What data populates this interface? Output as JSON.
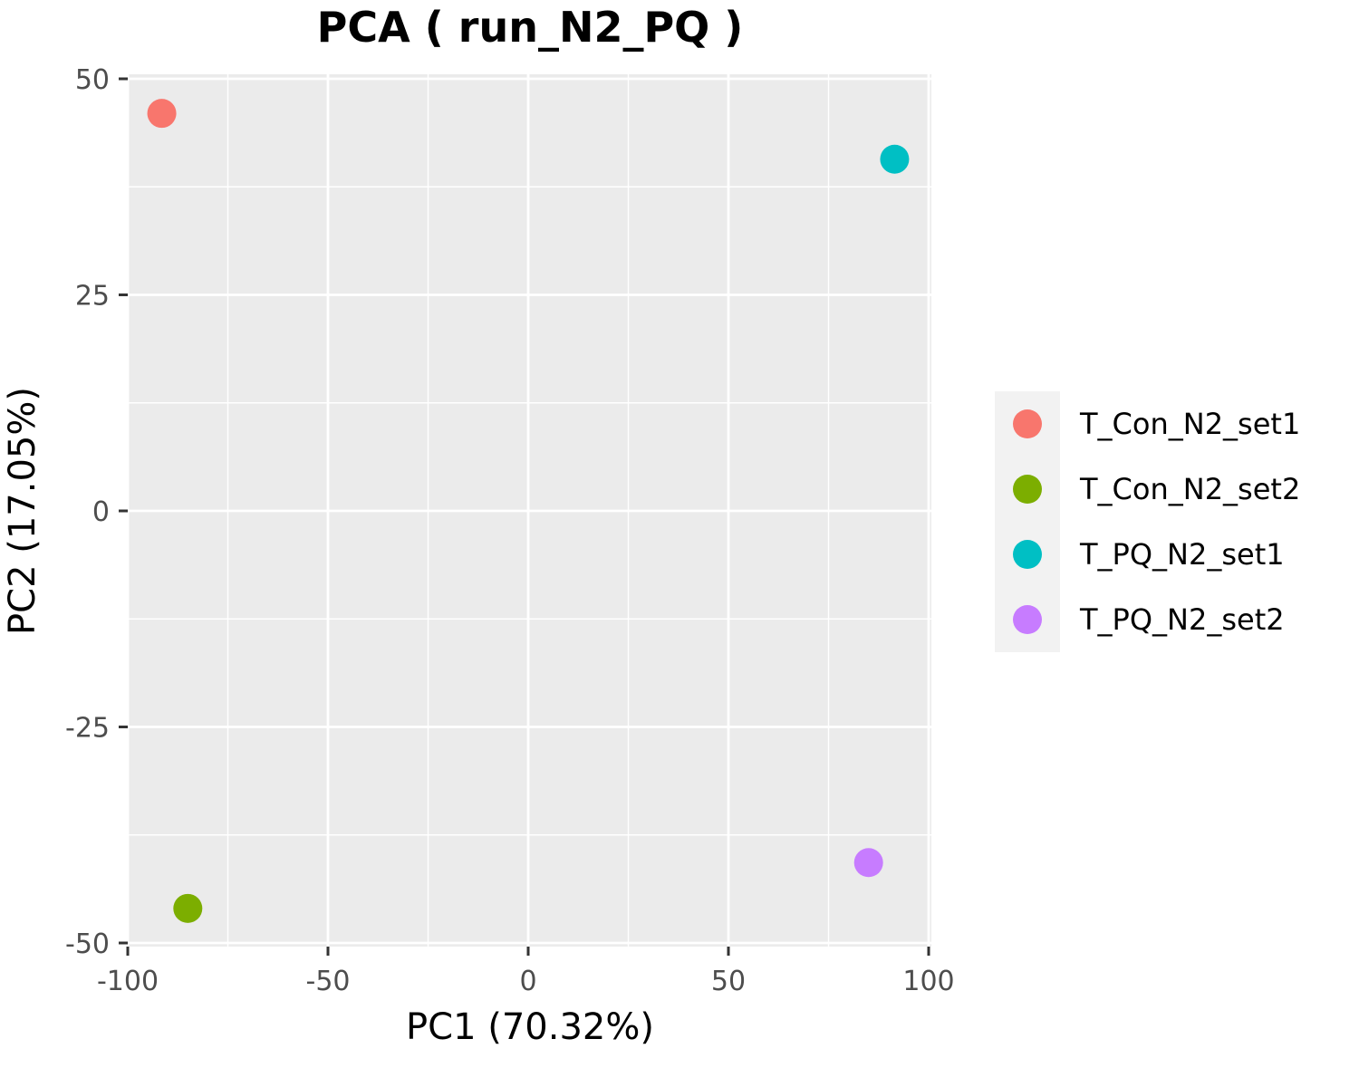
{
  "chart_data": {
    "type": "scatter",
    "title": "PCA ( run_N2_PQ )",
    "xlabel": "PC1 (70.32%)",
    "ylabel": "PC2 (17.05%)",
    "xlim": [
      -100,
      100
    ],
    "ylim": [
      -50,
      50
    ],
    "x_ticks": [
      -100,
      -50,
      0,
      50,
      100
    ],
    "x_tick_labels": [
      "-100",
      "-50",
      "0",
      "50",
      "100"
    ],
    "y_ticks": [
      -50,
      -25,
      0,
      25,
      50
    ],
    "y_tick_labels": [
      "-50",
      "-25",
      "0",
      "25",
      "50"
    ],
    "grid": true,
    "legend_position": "right",
    "series": [
      {
        "name": "T_Con_N2_set1",
        "color": "#F8766D",
        "x": [
          -91.5
        ],
        "y": [
          46
        ]
      },
      {
        "name": "T_Con_N2_set2",
        "color": "#7CAE00",
        "x": [
          -85
        ],
        "y": [
          -46
        ]
      },
      {
        "name": "T_PQ_N2_set1",
        "color": "#00BFC4",
        "x": [
          91.5
        ],
        "y": [
          40.7
        ]
      },
      {
        "name": "T_PQ_N2_set2",
        "color": "#C77CFF",
        "x": [
          85
        ],
        "y": [
          -40.7
        ]
      }
    ]
  },
  "colors": {
    "panel_background": "#EBEBEB",
    "grid_major": "#FFFFFF",
    "legend_background": "#F2F2F2",
    "tick_text": "#4D4D4D"
  }
}
